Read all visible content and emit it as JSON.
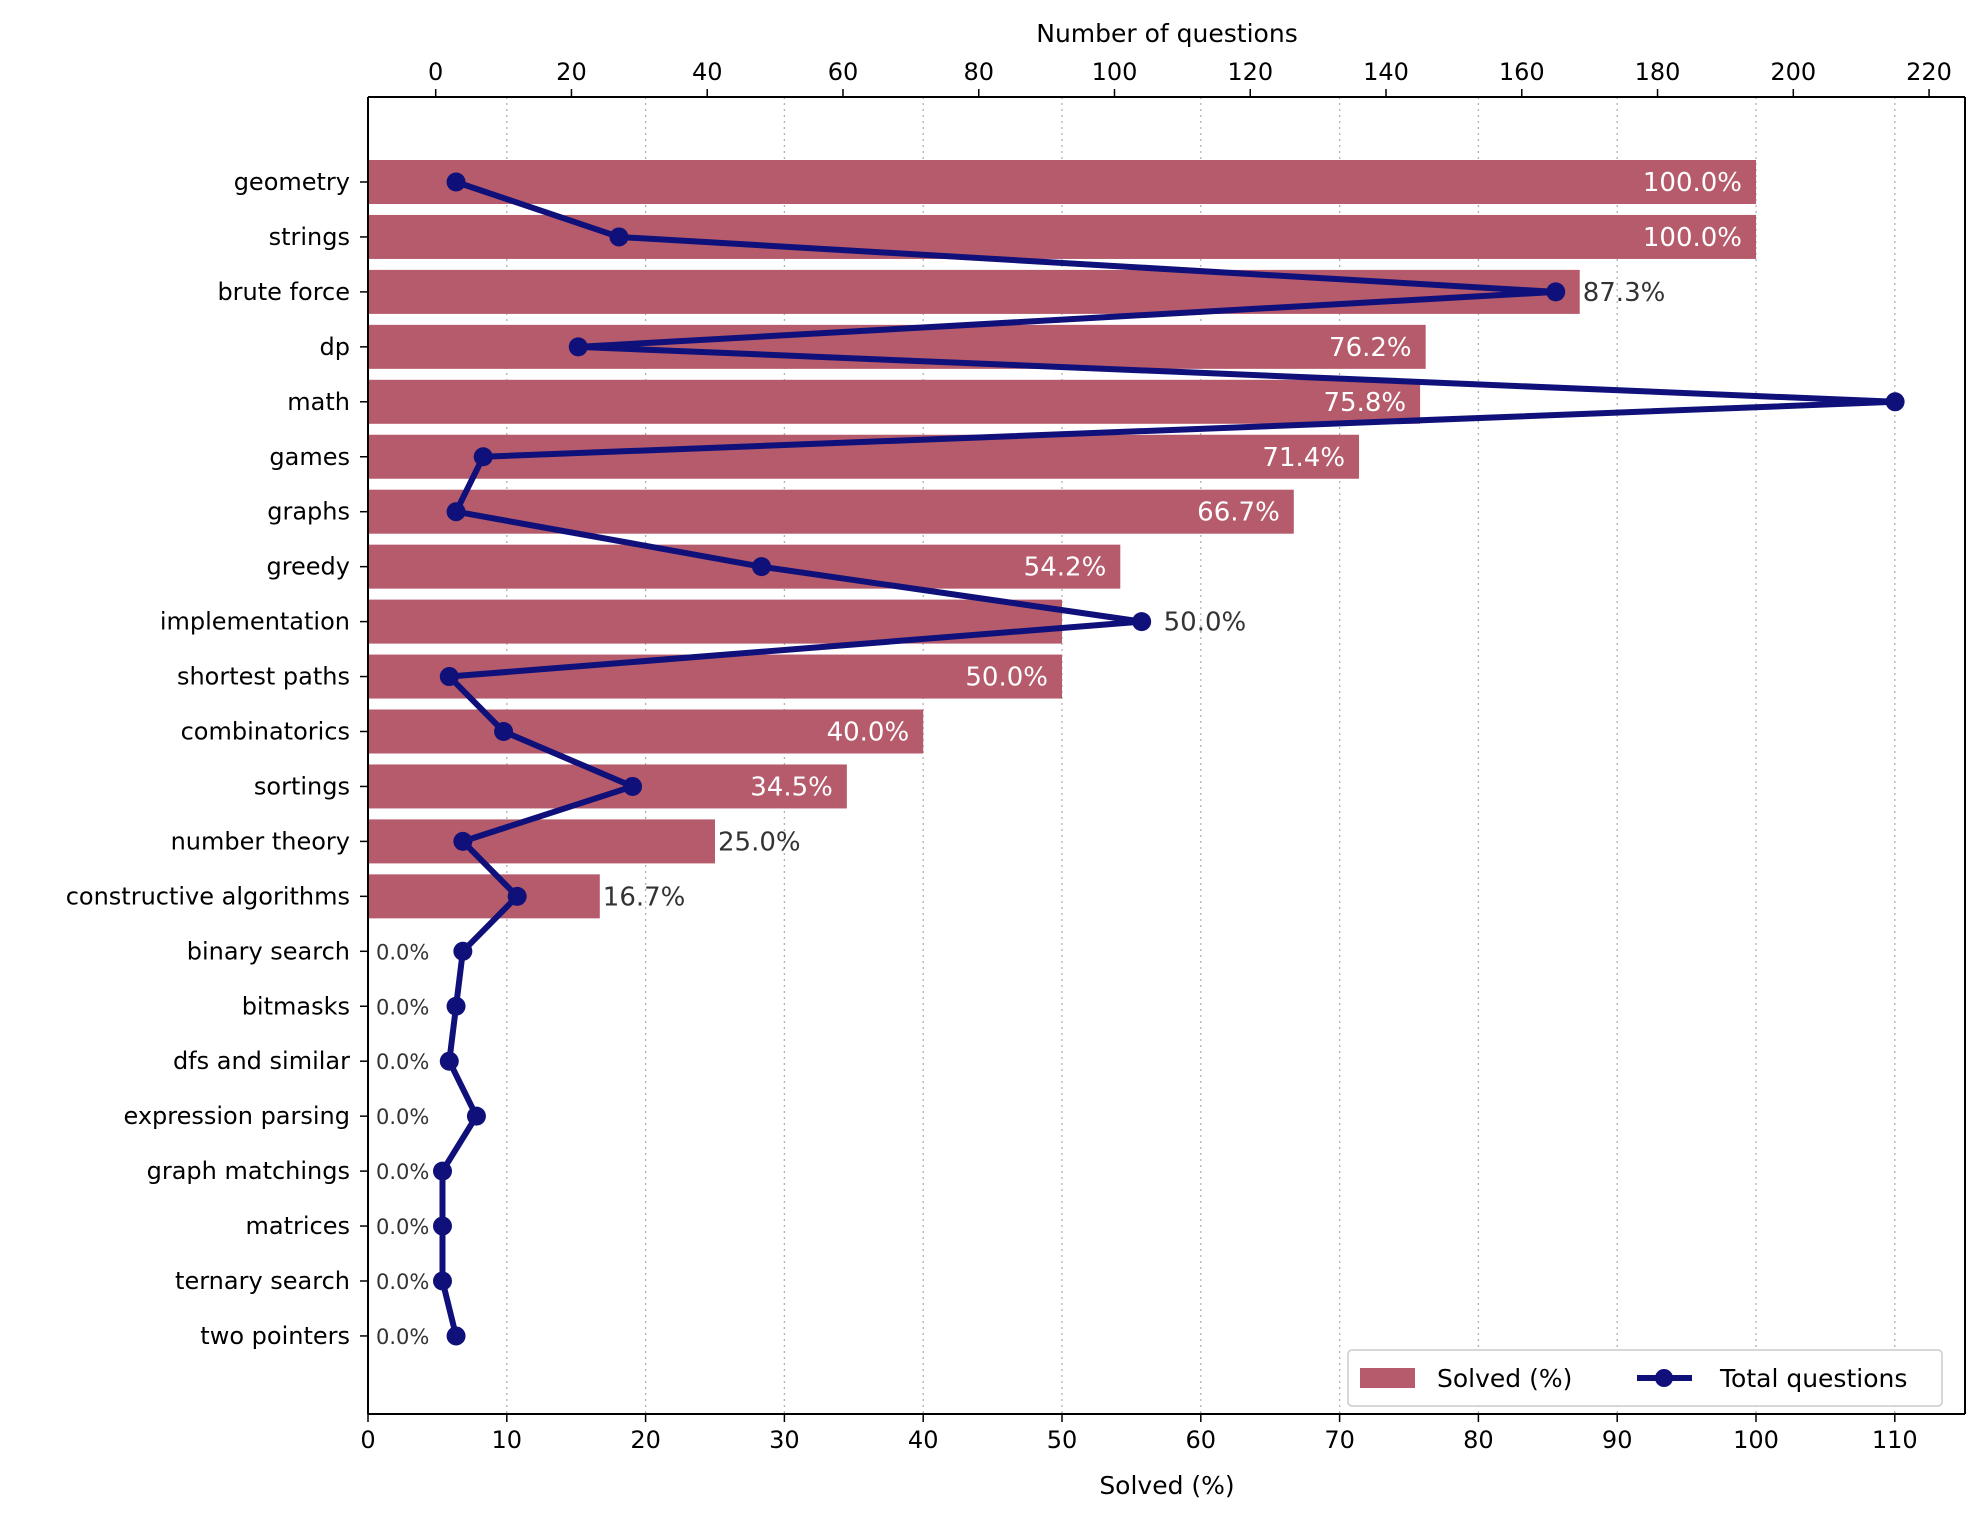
{
  "chart_data": {
    "type": "bar",
    "orientation": "horizontal",
    "categories": [
      "geometry",
      "strings",
      "brute force",
      "dp",
      "math",
      "games",
      "graphs",
      "greedy",
      "implementation",
      "shortest paths",
      "combinatorics",
      "sortings",
      "number theory",
      "constructive algorithms",
      "binary search",
      "bitmasks",
      "dfs and similar",
      "expression parsing",
      "graph matchings",
      "matrices",
      "ternary search",
      "two pointers"
    ],
    "series": [
      {
        "name": "Solved (%)",
        "type": "bar",
        "axis": "bottom",
        "color": "#b55b6c",
        "values": [
          100.0,
          100.0,
          87.3,
          76.2,
          75.8,
          71.4,
          66.7,
          54.2,
          50.0,
          50.0,
          40.0,
          34.5,
          25.0,
          16.7,
          0.0,
          0.0,
          0.0,
          0.0,
          0.0,
          0.0,
          0.0,
          0.0
        ],
        "labels": [
          "100.0%",
          "100.0%",
          "87.3%",
          "76.2%",
          "75.8%",
          "71.4%",
          "66.7%",
          "54.2%",
          "50.0%",
          "50.0%",
          "40.0%",
          "34.5%",
          "25.0%",
          "16.7%",
          "0.0%",
          "0.0%",
          "0.0%",
          "0.0%",
          "0.0%",
          "0.0%",
          "0.0%",
          "0.0%"
        ]
      },
      {
        "name": "Total questions",
        "type": "line",
        "axis": "top",
        "color": "#10107a",
        "values": [
          3,
          27,
          165,
          21,
          215,
          7,
          3,
          48,
          104,
          2,
          10,
          29,
          4,
          12,
          4,
          3,
          2,
          6,
          1,
          1,
          1,
          3
        ]
      }
    ],
    "xlabel": "Solved (%)",
    "x2label": "Number of questions",
    "xlim": [
      0,
      115
    ],
    "x2lim": [
      -10,
      225
    ],
    "xticks": [
      "0",
      "10",
      "20",
      "30",
      "40",
      "50",
      "60",
      "70",
      "80",
      "90",
      "100",
      "110"
    ],
    "x2ticks": [
      "0",
      "20",
      "40",
      "60",
      "80",
      "100",
      "120",
      "140",
      "160",
      "180",
      "200",
      "220"
    ],
    "grid": "vertical dotted",
    "legend": "lower-right"
  }
}
